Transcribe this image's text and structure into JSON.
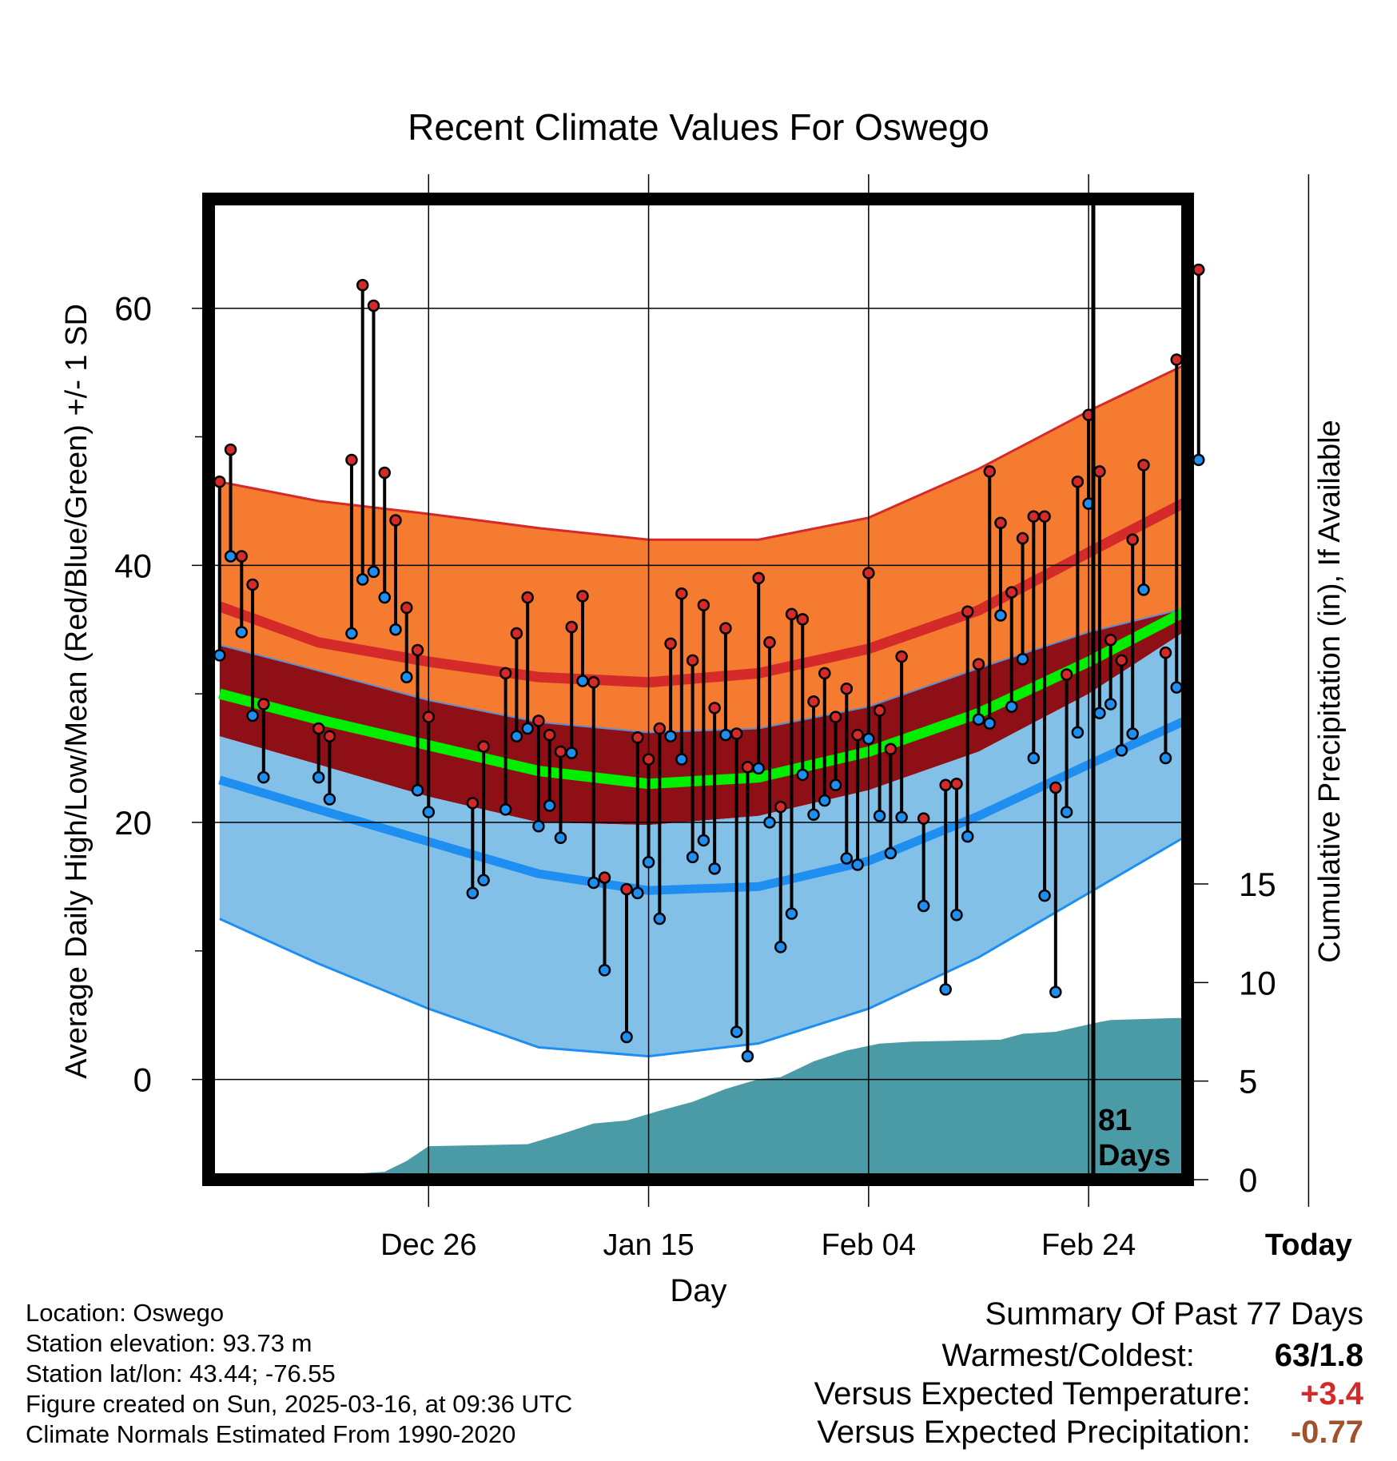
{
  "chart_data": {
    "type": "line",
    "title": "Recent Climate Values For Oswego",
    "xlabel": "Day",
    "ylabel": "Average Daily High/Low/Mean (Red/Blue/Green) +/- 1 SD",
    "ylabel_right": "Cumulative Precipitation (in), If Available",
    "x_ticks": [
      "Dec 26",
      "Jan 15",
      "Feb 04",
      "Feb 24",
      "Today"
    ],
    "y_ticks": [
      0,
      20,
      40,
      60
    ],
    "y_ticks_right": [
      0,
      5,
      10,
      15
    ],
    "ylim": [
      -7.8,
      68.5
    ],
    "ylim_right": [
      0,
      15
    ],
    "xlim_days": [
      -80,
      9
    ],
    "grid": true,
    "today_label": "81\nDays",
    "colors": {
      "high_band": "#f47b30",
      "high_band_edge": "#d42a2a",
      "high_mean": "#d42a2a",
      "mean_band": "#8e1016",
      "mean_line": "#00ee00",
      "low_band": "#82c0e8",
      "low_band_edge": "#1e8ff0",
      "low_mean": "#1e8ff0",
      "precip": "#4a9ba5",
      "high_dot": "#d42a2a",
      "low_dot": "#1e8ff0"
    },
    "normals": {
      "day": [
        -79,
        -70,
        -60,
        -50,
        -40,
        -30,
        -20,
        -10,
        0,
        9
      ],
      "high_upper": [
        46.5,
        45.0,
        44.0,
        42.9,
        42.0,
        42.0,
        43.7,
        47.5,
        52.0,
        55.7
      ],
      "high_mean": [
        36.8,
        34.0,
        32.5,
        31.3,
        30.9,
        31.6,
        33.5,
        36.5,
        41.0,
        45.0
      ],
      "mean_line": [
        30.0,
        28.0,
        26.0,
        24.0,
        23.0,
        23.5,
        25.5,
        28.5,
        32.5,
        36.5
      ],
      "mean_band_upper": [
        33.8,
        31.8,
        29.5,
        27.8,
        27.0,
        27.3,
        29.0,
        32.0,
        34.8,
        36.7
      ],
      "mean_band_lower": [
        26.7,
        24.5,
        22.0,
        20.0,
        19.8,
        20.5,
        22.5,
        25.5,
        30.0,
        35.0
      ],
      "low_mean": [
        23.3,
        21.0,
        18.5,
        16.0,
        14.7,
        15.0,
        17.0,
        20.5,
        24.5,
        28.0
      ],
      "low_lower": [
        12.5,
        9.0,
        5.5,
        2.5,
        1.8,
        2.8,
        5.5,
        9.5,
        14.5,
        19.0
      ]
    },
    "observations": [
      {
        "day": -79,
        "high": 46.5,
        "low": 33.0
      },
      {
        "day": -78,
        "high": 49.0,
        "low": 40.7
      },
      {
        "day": -77,
        "high": 40.7,
        "low": 34.8
      },
      {
        "day": -76,
        "high": 38.5,
        "low": 28.3
      },
      {
        "day": -75,
        "high": 29.2,
        "low": 23.5
      },
      {
        "day": -70,
        "high": 27.3,
        "low": 23.5
      },
      {
        "day": -69,
        "high": 26.7,
        "low": 21.8
      },
      {
        "day": -67,
        "high": 48.2,
        "low": 34.7
      },
      {
        "day": -66,
        "high": 61.8,
        "low": 38.9
      },
      {
        "day": -65,
        "high": 60.2,
        "low": 39.5
      },
      {
        "day": -64,
        "high": 47.2,
        "low": 37.5
      },
      {
        "day": -63,
        "high": 43.5,
        "low": 35.0
      },
      {
        "day": -62,
        "high": 36.7,
        "low": 31.3
      },
      {
        "day": -61,
        "high": 33.4,
        "low": 22.5
      },
      {
        "day": -60,
        "high": 28.2,
        "low": 20.8
      },
      {
        "day": -56,
        "high": 21.5,
        "low": 14.5
      },
      {
        "day": -55,
        "high": 25.9,
        "low": 15.5
      },
      {
        "day": -53,
        "high": 31.6,
        "low": 21.0
      },
      {
        "day": -52,
        "high": 34.7,
        "low": 26.7
      },
      {
        "day": -51,
        "high": 37.5,
        "low": 27.3
      },
      {
        "day": -50,
        "high": 27.9,
        "low": 19.7
      },
      {
        "day": -49,
        "high": 26.8,
        "low": 21.3
      },
      {
        "day": -48,
        "high": 25.5,
        "low": 18.8
      },
      {
        "day": -47,
        "high": 35.2,
        "low": 25.4
      },
      {
        "day": -46,
        "high": 37.6,
        "low": 31.0
      },
      {
        "day": -45,
        "high": 30.9,
        "low": 15.3
      },
      {
        "day": -44,
        "high": 15.7,
        "low": 8.5
      },
      {
        "day": -42,
        "high": 14.8,
        "low": 3.3
      },
      {
        "day": -41,
        "high": 26.6,
        "low": 14.5
      },
      {
        "day": -40,
        "high": 24.9,
        "low": 16.9
      },
      {
        "day": -39,
        "high": 27.3,
        "low": 12.5
      },
      {
        "day": -38,
        "high": 33.9,
        "low": 26.7
      },
      {
        "day": -37,
        "high": 37.8,
        "low": 24.9
      },
      {
        "day": -36,
        "high": 32.6,
        "low": 17.3
      },
      {
        "day": -35,
        "high": 36.9,
        "low": 18.6
      },
      {
        "day": -34,
        "high": 28.9,
        "low": 16.4
      },
      {
        "day": -33,
        "high": 35.1,
        "low": 26.8
      },
      {
        "day": -32,
        "high": 26.9,
        "low": 3.7
      },
      {
        "day": -31,
        "high": 24.3,
        "low": 1.8
      },
      {
        "day": -30,
        "high": 39.0,
        "low": 24.2
      },
      {
        "day": -29,
        "high": 34.0,
        "low": 20.0
      },
      {
        "day": -28,
        "high": 21.2,
        "low": 10.3
      },
      {
        "day": -27,
        "high": 36.2,
        "low": 12.9
      },
      {
        "day": -26,
        "high": 35.8,
        "low": 23.7
      },
      {
        "day": -25,
        "high": 29.4,
        "low": 20.6
      },
      {
        "day": -24,
        "high": 31.6,
        "low": 21.7
      },
      {
        "day": -23,
        "high": 28.2,
        "low": 22.9
      },
      {
        "day": -22,
        "high": 30.4,
        "low": 17.2
      },
      {
        "day": -21,
        "high": 26.8,
        "low": 16.7
      },
      {
        "day": -20,
        "high": 39.4,
        "low": 26.5
      },
      {
        "day": -19,
        "high": 28.7,
        "low": 20.5
      },
      {
        "day": -18,
        "high": 25.7,
        "low": 17.6
      },
      {
        "day": -17,
        "high": 32.9,
        "low": 20.4
      },
      {
        "day": -15,
        "high": 20.3,
        "low": 13.5
      },
      {
        "day": -13,
        "high": 22.9,
        "low": 7.0
      },
      {
        "day": -12,
        "high": 23.0,
        "low": 12.8
      },
      {
        "day": -11,
        "high": 36.4,
        "low": 18.9
      },
      {
        "day": -10,
        "high": 32.3,
        "low": 28.0
      },
      {
        "day": -9,
        "high": 47.3,
        "low": 27.7
      },
      {
        "day": -8,
        "high": 43.3,
        "low": 36.1
      },
      {
        "day": -7,
        "high": 37.9,
        "low": 29.0
      },
      {
        "day": -6,
        "high": 42.1,
        "low": 32.7
      },
      {
        "day": -5,
        "high": 43.8,
        "low": 25.0
      },
      {
        "day": -4,
        "high": 43.8,
        "low": 14.3
      },
      {
        "day": -3,
        "high": 22.7,
        "low": 6.8
      },
      {
        "day": -2,
        "high": 31.5,
        "low": 20.8
      },
      {
        "day": -1,
        "high": 46.5,
        "low": 27.0
      },
      {
        "day": 0,
        "high": 51.7,
        "low": 44.8
      },
      {
        "day": 1,
        "high": 47.3,
        "low": 28.5
      },
      {
        "day": 2,
        "high": 34.2,
        "low": 29.2
      },
      {
        "day": 3,
        "high": 32.6,
        "low": 25.6
      },
      {
        "day": 4,
        "high": 42.0,
        "low": 26.9
      },
      {
        "day": 5,
        "high": 47.8,
        "low": 38.1
      },
      {
        "day": 7,
        "high": 33.2,
        "low": 25.0
      },
      {
        "day": 8,
        "high": 56.0,
        "low": 30.5
      },
      {
        "day": 9,
        "high": 63.0,
        "low": 25.8
      },
      {
        "day": 10,
        "high": 63.0,
        "low": 48.2
      }
    ],
    "precipitation": {
      "day": [
        -79,
        -77,
        -72,
        -68,
        -64,
        -62,
        -60,
        -55,
        -51,
        -48,
        -45,
        -42,
        -39,
        -36,
        -33,
        -30,
        -28,
        -25,
        -22,
        -19,
        -16,
        -12,
        -8,
        -6,
        -3,
        1,
        2,
        8,
        9
      ],
      "cumulative": [
        0.0,
        0.05,
        0.1,
        0.25,
        0.4,
        0.95,
        1.7,
        1.75,
        1.8,
        2.3,
        2.85,
        3.0,
        3.5,
        3.95,
        4.6,
        5.1,
        5.2,
        6.0,
        6.55,
        6.9,
        7.0,
        7.05,
        7.1,
        7.4,
        7.5,
        8.0,
        8.1,
        8.2,
        8.2
      ]
    }
  },
  "info": {
    "location": "Location: Oswego",
    "elevation": "Station elevation: 93.73 m",
    "latlon": "Station lat/lon: 43.44; -76.55",
    "created": "Figure created on Sun, 2025-03-16, at 09:36 UTC",
    "normals": "Climate Normals Estimated From 1990-2020"
  },
  "summary": {
    "title": "Summary Of Past 77 Days",
    "warmest_coldest_label": "Warmest/Coldest:",
    "warmest_coldest_value": "63/1.8",
    "temp_label": "Versus Expected Temperature:",
    "temp_value": "+3.4",
    "temp_color": "#d42a2a",
    "precip_label": "Versus Expected Precipitation:",
    "precip_value": "-0.77",
    "precip_color": "#a0522d"
  }
}
